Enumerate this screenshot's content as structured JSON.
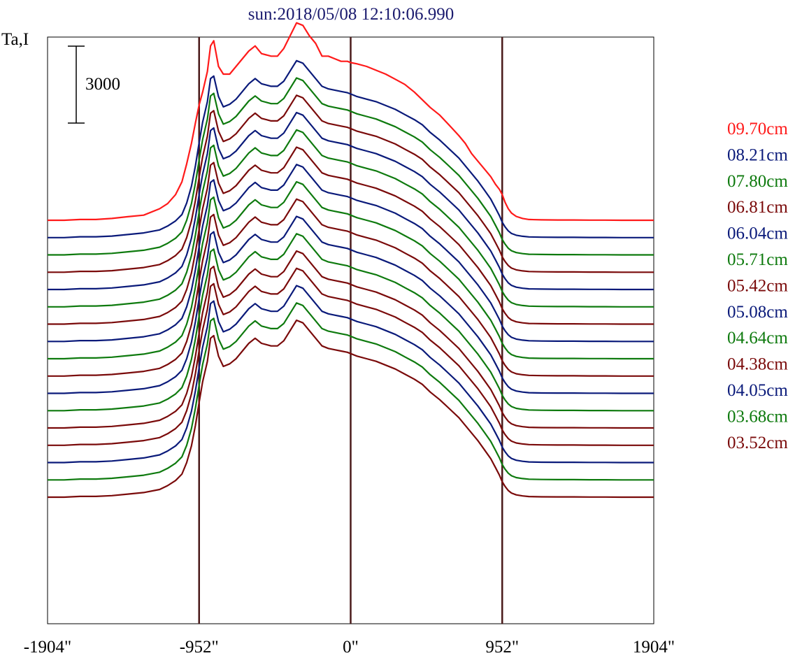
{
  "chart_data": {
    "type": "line",
    "title": "sun:2018/05/08 12:10:06.990",
    "ylabel": "Ta,I",
    "x_tick_labels": [
      "-1904\"",
      "-952\"",
      "0\"",
      "952\"",
      "1904\""
    ],
    "x_ticks": [
      -1904,
      -952,
      0,
      952,
      1904
    ],
    "xlim": [
      -1904,
      1904
    ],
    "vertical_lines": [
      -952,
      0,
      952
    ],
    "scale_bar_label": "3000",
    "scale_bar_value": 3000,
    "grid": false,
    "legend_position": "right",
    "colors": {
      "red": "#ff1a1a",
      "blue": "#0a1a7a",
      "green": "#0e7a0e",
      "brown": "#7a0a0a",
      "title": "#1a1a6e",
      "guide": "#4a1a1a"
    },
    "profile_x": [
      -1904,
      -1800,
      -1700,
      -1600,
      -1500,
      -1400,
      -1300,
      -1200,
      -1150,
      -1100,
      -1060,
      -1030,
      -1000,
      -975,
      -952,
      -930,
      -900,
      -880,
      -860,
      -830,
      -800,
      -760,
      -720,
      -680,
      -640,
      -600,
      -560,
      -500,
      -460,
      -420,
      -380,
      -340,
      -300,
      -260,
      -220,
      -180,
      -140,
      -100,
      -60,
      -20,
      0,
      40,
      100,
      160,
      220,
      280,
      340,
      400,
      450,
      500,
      560,
      620,
      680,
      720,
      760,
      800,
      840,
      880,
      910,
      935,
      952,
      970,
      990,
      1010,
      1040,
      1080,
      1120,
      1200,
      1300,
      1400,
      1500,
      1600,
      1700,
      1800,
      1904
    ],
    "profile_red": [
      0,
      0,
      30,
      30,
      70,
      140,
      200,
      450,
      650,
      1000,
      1500,
      2200,
      3000,
      3800,
      4500,
      5000,
      5800,
      6800,
      7000,
      6000,
      5700,
      5700,
      6000,
      6300,
      6600,
      6800,
      6500,
      6400,
      6400,
      6700,
      7200,
      7700,
      7600,
      7200,
      6900,
      6400,
      6400,
      6300,
      6200,
      6200,
      6150,
      6100,
      6000,
      5850,
      5700,
      5500,
      5300,
      5000,
      4700,
      4400,
      4100,
      3700,
      3300,
      3000,
      2600,
      2300,
      2000,
      1700,
      1400,
      1200,
      1000,
      700,
      450,
      280,
      150,
      70,
      30,
      15,
      10,
      10,
      5,
      5,
      0,
      0,
      0
    ],
    "profile_other": [
      0,
      0,
      30,
      30,
      60,
      120,
      180,
      300,
      450,
      650,
      900,
      1350,
      2000,
      2800,
      3700,
      4500,
      5300,
      6200,
      6300,
      5500,
      5100,
      5200,
      5400,
      5700,
      6000,
      6200,
      6000,
      5900,
      5900,
      6100,
      6500,
      6900,
      6800,
      6500,
      6200,
      5900,
      5800,
      5750,
      5700,
      5650,
      5600,
      5500,
      5400,
      5300,
      5150,
      5000,
      4800,
      4600,
      4400,
      4100,
      3800,
      3450,
      3100,
      2800,
      2500,
      2200,
      1850,
      1500,
      1150,
      850,
      600,
      420,
      260,
      160,
      90,
      50,
      25,
      15,
      10,
      10,
      5,
      5,
      0,
      0,
      0
    ],
    "series": [
      {
        "name": "09.70cm",
        "color": "#ff1a1a",
        "offset": 0,
        "profile": "red"
      },
      {
        "name": "08.21cm",
        "color": "#0a1a7a",
        "offset": -675,
        "profile": "other"
      },
      {
        "name": "07.80cm",
        "color": "#0e7a0e",
        "offset": -1350,
        "profile": "other"
      },
      {
        "name": "06.81cm",
        "color": "#7a0a0a",
        "offset": -2025,
        "profile": "other"
      },
      {
        "name": "06.04cm",
        "color": "#0a1a7a",
        "offset": -2700,
        "profile": "other"
      },
      {
        "name": "05.71cm",
        "color": "#0e7a0e",
        "offset": -3375,
        "profile": "other"
      },
      {
        "name": "05.42cm",
        "color": "#7a0a0a",
        "offset": -4050,
        "profile": "other"
      },
      {
        "name": "05.08cm",
        "color": "#0a1a7a",
        "offset": -4725,
        "profile": "other"
      },
      {
        "name": "04.64cm",
        "color": "#0e7a0e",
        "offset": -5400,
        "profile": "other"
      },
      {
        "name": "04.38cm",
        "color": "#7a0a0a",
        "offset": -6075,
        "profile": "other"
      },
      {
        "name": "04.05cm",
        "color": "#0a1a7a",
        "offset": -6750,
        "profile": "other"
      },
      {
        "name": "03.68cm",
        "color": "#0e7a0e",
        "offset": -7425,
        "profile": "other"
      },
      {
        "name": "03.52cm",
        "color": "#7a0a0a",
        "offset": -8100,
        "profile": "other"
      },
      {
        "name": "",
        "color": "#7a0a0a",
        "offset": -8775,
        "profile": "other"
      },
      {
        "name": "",
        "color": "#0a1a7a",
        "offset": -9450,
        "profile": "other"
      },
      {
        "name": "",
        "color": "#0e7a0e",
        "offset": -10125,
        "profile": "other"
      },
      {
        "name": "",
        "color": "#7a0a0a",
        "offset": -10800,
        "profile": "other"
      }
    ]
  }
}
